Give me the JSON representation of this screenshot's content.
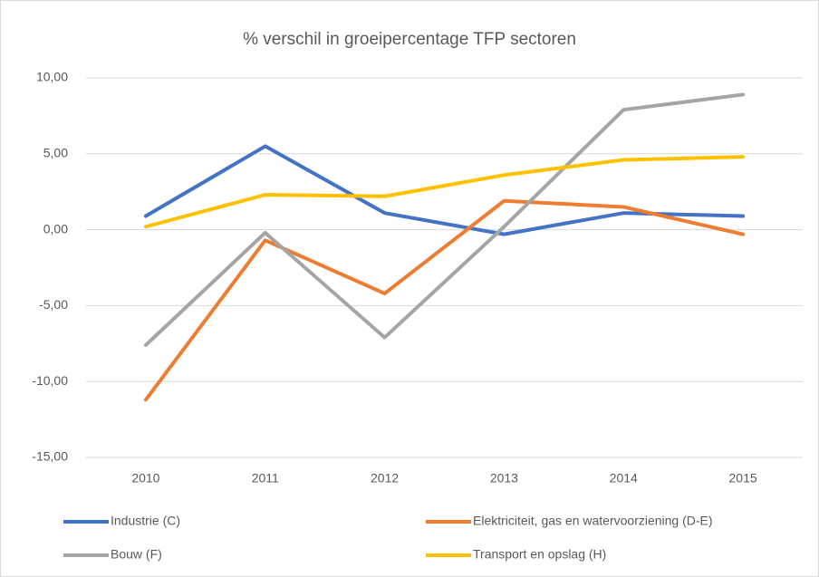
{
  "chart_data": {
    "type": "line",
    "title": "% verschil in groeipercentage TFP sectoren",
    "categories": [
      "2010",
      "2011",
      "2012",
      "2013",
      "2014",
      "2015"
    ],
    "series": [
      {
        "name": "Industrie (C)",
        "color": "#4472c4",
        "values": [
          0.9,
          5.5,
          1.1,
          -0.3,
          1.1,
          0.9
        ]
      },
      {
        "name": "Elektriciteit, gas en watervoorziening (D-E)",
        "color": "#ed7d31",
        "values": [
          -11.2,
          -0.7,
          -4.2,
          1.9,
          1.5,
          -0.3
        ]
      },
      {
        "name": "Bouw (F)",
        "color": "#a5a5a5",
        "values": [
          -7.6,
          -0.2,
          -7.1,
          0.2,
          7.9,
          8.9
        ]
      },
      {
        "name": "Transport en opslag (H)",
        "color": "#ffc000",
        "values": [
          0.2,
          2.3,
          2.2,
          3.6,
          4.6,
          4.8
        ]
      }
    ],
    "ylim": [
      -15,
      10
    ],
    "yticks": [
      {
        "value": -15,
        "label": "-15,00"
      },
      {
        "value": -10,
        "label": "-10,00"
      },
      {
        "value": -5,
        "label": "-5,00"
      },
      {
        "value": 0,
        "label": "0,00"
      },
      {
        "value": 5,
        "label": "5,00"
      },
      {
        "value": 10,
        "label": "10,00"
      }
    ],
    "grid": true,
    "legend": "bottom"
  }
}
